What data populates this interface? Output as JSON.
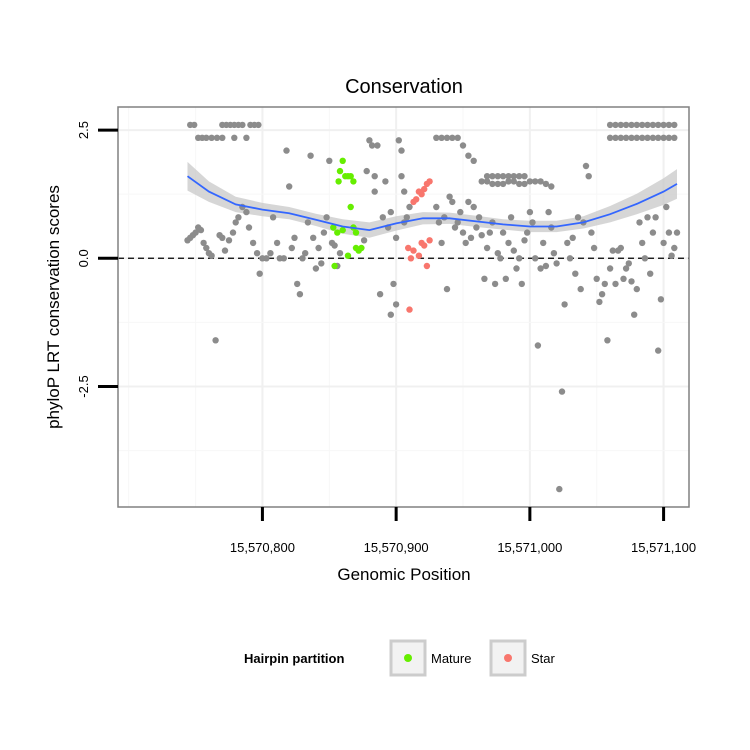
{
  "chart_data": {
    "type": "scatter",
    "title": "Conservation",
    "xlabel": "Genomic Position",
    "ylabel": "phyloP LRT conservation scores",
    "xlim": [
      15570692,
      15571119
    ],
    "ylim": [
      -4.85,
      2.95
    ],
    "x_ticks": [
      15570800,
      15570900,
      15571000,
      15571100
    ],
    "x_tick_labels": [
      "15,570,800",
      "15,570,900",
      "15,571,000",
      "15,571,100"
    ],
    "y_ticks": [
      -2.5,
      0.0,
      2.5
    ],
    "y_tick_labels": [
      "-2.5",
      "0.0",
      "2.5"
    ],
    "reference_line": {
      "y": 0,
      "style": "dashed"
    },
    "legend": {
      "title": "Hairpin partition",
      "position": "bottom",
      "entries": [
        {
          "label": "Mature",
          "color": "#66ee00"
        },
        {
          "label": "Star",
          "color": "#f8766d"
        }
      ]
    },
    "colors": {
      "other": "#8c8c8c",
      "smooth": "#3366ff",
      "ribbon": "#c8c8c8"
    },
    "series": [
      {
        "name": "Other",
        "points": [
          [
            15570746,
            2.6
          ],
          [
            15570749,
            2.6
          ],
          [
            15570752,
            2.35
          ],
          [
            15570755,
            2.35
          ],
          [
            15570758,
            2.35
          ],
          [
            15570762,
            2.35
          ],
          [
            15570766,
            2.35
          ],
          [
            15570770,
            2.6
          ],
          [
            15570773,
            2.6
          ],
          [
            15570776,
            2.6
          ],
          [
            15570779,
            2.35
          ],
          [
            15570782,
            2.6
          ],
          [
            15570785,
            2.6
          ],
          [
            15570788,
            2.35
          ],
          [
            15570791,
            2.6
          ],
          [
            15570794,
            2.6
          ],
          [
            15570797,
            2.6
          ],
          [
            15570779,
            2.6
          ],
          [
            15570770,
            2.35
          ],
          [
            15570744,
            0.35
          ],
          [
            15570746,
            0.4
          ],
          [
            15570748,
            0.45
          ],
          [
            15570750,
            0.5
          ],
          [
            15570752,
            0.6
          ],
          [
            15570754,
            0.55
          ],
          [
            15570756,
            0.3
          ],
          [
            15570758,
            0.2
          ],
          [
            15570760,
            0.1
          ],
          [
            15570762,
            0.05
          ],
          [
            15570765,
            -1.6
          ],
          [
            15570768,
            0.45
          ],
          [
            15570770,
            0.4
          ],
          [
            15570772,
            0.15
          ],
          [
            15570775,
            0.35
          ],
          [
            15570778,
            0.5
          ],
          [
            15570780,
            0.7
          ],
          [
            15570782,
            0.8
          ],
          [
            15570785,
            1.0
          ],
          [
            15570788,
            0.9
          ],
          [
            15570790,
            0.6
          ],
          [
            15570793,
            0.3
          ],
          [
            15570796,
            0.1
          ],
          [
            15570798,
            -0.3
          ],
          [
            15570800,
            0.0
          ],
          [
            15570803,
            0.0
          ],
          [
            15570806,
            0.1
          ],
          [
            15570808,
            0.8
          ],
          [
            15570811,
            0.3
          ],
          [
            15570813,
            0.0
          ],
          [
            15570816,
            0.0
          ],
          [
            15570818,
            2.1
          ],
          [
            15570820,
            1.4
          ],
          [
            15570822,
            0.2
          ],
          [
            15570824,
            0.4
          ],
          [
            15570826,
            -0.5
          ],
          [
            15570828,
            -0.7
          ],
          [
            15570830,
            0.0
          ],
          [
            15570832,
            0.1
          ],
          [
            15570834,
            0.7
          ],
          [
            15570836,
            2.0
          ],
          [
            15570838,
            0.4
          ],
          [
            15570840,
            -0.2
          ],
          [
            15570842,
            0.2
          ],
          [
            15570844,
            -0.1
          ],
          [
            15570846,
            0.5
          ],
          [
            15570848,
            0.8
          ],
          [
            15570850,
            1.9
          ],
          [
            15570852,
            0.3
          ],
          [
            15570854,
            0.25
          ],
          [
            15570856,
            -0.15
          ],
          [
            15570858,
            0.1
          ],
          [
            15570876,
            0.35
          ],
          [
            15570878,
            1.7
          ],
          [
            15570880,
            2.3
          ],
          [
            15570882,
            2.2
          ],
          [
            15570884,
            1.3
          ],
          [
            15570886,
            2.2
          ],
          [
            15570888,
            -0.7
          ],
          [
            15570890,
            0.8
          ],
          [
            15570892,
            1.5
          ],
          [
            15570894,
            0.6
          ],
          [
            15570896,
            -1.1
          ],
          [
            15570898,
            -0.5
          ],
          [
            15570900,
            -0.9
          ],
          [
            15570902,
            2.3
          ],
          [
            15570904,
            2.1
          ],
          [
            15570906,
            0.7
          ],
          [
            15570908,
            0.8
          ],
          [
            15570904,
            1.6
          ],
          [
            15570906,
            1.3
          ],
          [
            15570900,
            0.4
          ],
          [
            15570896,
            0.9
          ],
          [
            15570910,
            1.0
          ],
          [
            15570884,
            1.6
          ],
          [
            15570930,
            1.0
          ],
          [
            15570932,
            0.7
          ],
          [
            15570934,
            0.3
          ],
          [
            15570936,
            0.8
          ],
          [
            15570938,
            -0.6
          ],
          [
            15570940,
            1.2
          ],
          [
            15570942,
            1.1
          ],
          [
            15570944,
            0.6
          ],
          [
            15570946,
            0.7
          ],
          [
            15570948,
            0.9
          ],
          [
            15570950,
            0.5
          ],
          [
            15570952,
            0.3
          ],
          [
            15570954,
            1.1
          ],
          [
            15570956,
            0.4
          ],
          [
            15570958,
            1.0
          ],
          [
            15570960,
            0.6
          ],
          [
            15570962,
            0.8
          ],
          [
            15570964,
            0.45
          ],
          [
            15570966,
            -0.4
          ],
          [
            15570968,
            0.2
          ],
          [
            15570970,
            0.5
          ],
          [
            15570972,
            0.7
          ],
          [
            15570974,
            -0.5
          ],
          [
            15570976,
            0.1
          ],
          [
            15570978,
            0.0
          ],
          [
            15570980,
            0.5
          ],
          [
            15570982,
            -0.4
          ],
          [
            15570984,
            0.3
          ],
          [
            15570986,
            0.8
          ],
          [
            15570988,
            0.15
          ],
          [
            15570990,
            -0.2
          ],
          [
            15570992,
            0.0
          ],
          [
            15570994,
            -0.5
          ],
          [
            15570996,
            0.35
          ],
          [
            15570998,
            0.5
          ],
          [
            15571000,
            0.9
          ],
          [
            15571002,
            0.7
          ],
          [
            15571004,
            0.0
          ],
          [
            15571006,
            -1.7
          ],
          [
            15571008,
            -0.2
          ],
          [
            15571010,
            0.3
          ],
          [
            15571012,
            -0.15
          ],
          [
            15571014,
            0.9
          ],
          [
            15571016,
            0.6
          ],
          [
            15571018,
            0.1
          ],
          [
            15571020,
            -0.1
          ],
          [
            15571022,
            -4.5
          ],
          [
            15571024,
            -2.6
          ],
          [
            15571026,
            -0.9
          ],
          [
            15571028,
            0.3
          ],
          [
            15571030,
            0.0
          ],
          [
            15571032,
            0.4
          ],
          [
            15571034,
            -0.3
          ],
          [
            15571036,
            0.8
          ],
          [
            15571038,
            -0.6
          ],
          [
            15571040,
            0.7
          ],
          [
            15571042,
            1.8
          ],
          [
            15571044,
            1.6
          ],
          [
            15571046,
            0.5
          ],
          [
            15571048,
            0.2
          ],
          [
            15571050,
            -0.4
          ],
          [
            15571052,
            -0.85
          ],
          [
            15571054,
            -0.7
          ],
          [
            15571056,
            -0.5
          ],
          [
            15571058,
            -1.6
          ],
          [
            15571060,
            -0.2
          ],
          [
            15571062,
            0.15
          ],
          [
            15571064,
            -0.5
          ],
          [
            15571066,
            0.15
          ],
          [
            15571068,
            0.2
          ],
          [
            15571070,
            -0.4
          ],
          [
            15571072,
            -0.2
          ],
          [
            15571074,
            -0.1
          ],
          [
            15571076,
            -0.45
          ],
          [
            15571078,
            -1.1
          ],
          [
            15571080,
            -0.6
          ],
          [
            15571082,
            0.7
          ],
          [
            15571084,
            0.3
          ],
          [
            15571086,
            0.0
          ],
          [
            15571088,
            0.8
          ],
          [
            15571090,
            -0.3
          ],
          [
            15571092,
            0.5
          ],
          [
            15571094,
            0.8
          ],
          [
            15571096,
            -1.8
          ],
          [
            15571098,
            -0.8
          ],
          [
            15571100,
            0.3
          ],
          [
            15571102,
            1.0
          ],
          [
            15571104,
            0.5
          ],
          [
            15571106,
            0.05
          ],
          [
            15571108,
            0.2
          ],
          [
            15571110,
            0.5
          ],
          [
            15570968,
            1.6
          ],
          [
            15570972,
            1.6
          ],
          [
            15570976,
            1.6
          ],
          [
            15570980,
            1.6
          ],
          [
            15570984,
            1.6
          ],
          [
            15570988,
            1.6
          ],
          [
            15570992,
            1.6
          ],
          [
            15570996,
            1.6
          ],
          [
            15570964,
            1.5
          ],
          [
            15570968,
            1.5
          ],
          [
            15570972,
            1.45
          ],
          [
            15570976,
            1.45
          ],
          [
            15570980,
            1.45
          ],
          [
            15570984,
            1.5
          ],
          [
            15570988,
            1.5
          ],
          [
            15570992,
            1.45
          ],
          [
            15570996,
            1.45
          ],
          [
            15571000,
            1.5
          ],
          [
            15571004,
            1.5
          ],
          [
            15571008,
            1.5
          ],
          [
            15571012,
            1.45
          ],
          [
            15571016,
            1.4
          ],
          [
            15570930,
            2.35
          ],
          [
            15570934,
            2.35
          ],
          [
            15570938,
            2.35
          ],
          [
            15570942,
            2.35
          ],
          [
            15570946,
            2.35
          ],
          [
            15570950,
            2.2
          ],
          [
            15570954,
            2.0
          ],
          [
            15570958,
            1.9
          ],
          [
            15571060,
            2.6
          ],
          [
            15571064,
            2.6
          ],
          [
            15571068,
            2.6
          ],
          [
            15571072,
            2.6
          ],
          [
            15571076,
            2.6
          ],
          [
            15571080,
            2.6
          ],
          [
            15571084,
            2.6
          ],
          [
            15571088,
            2.6
          ],
          [
            15571092,
            2.6
          ],
          [
            15571096,
            2.6
          ],
          [
            15571100,
            2.6
          ],
          [
            15571104,
            2.6
          ],
          [
            15571108,
            2.6
          ],
          [
            15571060,
            2.35
          ],
          [
            15571064,
            2.35
          ],
          [
            15571068,
            2.35
          ],
          [
            15571072,
            2.35
          ],
          [
            15571076,
            2.35
          ],
          [
            15571080,
            2.35
          ],
          [
            15571084,
            2.35
          ],
          [
            15571088,
            2.35
          ],
          [
            15571092,
            2.35
          ],
          [
            15571096,
            2.35
          ],
          [
            15571100,
            2.35
          ],
          [
            15571104,
            2.35
          ],
          [
            15571108,
            2.35
          ]
        ]
      },
      {
        "name": "Mature",
        "points": [
          [
            15570853,
            0.6
          ],
          [
            15570856,
            0.5
          ],
          [
            15570858,
            1.7
          ],
          [
            15570860,
            1.9
          ],
          [
            15570862,
            1.6
          ],
          [
            15570864,
            1.6
          ],
          [
            15570866,
            1.6
          ],
          [
            15570868,
            1.5
          ],
          [
            15570866,
            1.0
          ],
          [
            15570868,
            0.6
          ],
          [
            15570870,
            0.5
          ],
          [
            15570870,
            0.2
          ],
          [
            15570872,
            0.15
          ],
          [
            15570874,
            0.2
          ],
          [
            15570857,
            1.5
          ],
          [
            15570860,
            0.55
          ],
          [
            15570864,
            0.05
          ],
          [
            15570854,
            -0.15
          ]
        ]
      },
      {
        "name": "Star",
        "points": [
          [
            15570909,
            0.2
          ],
          [
            15570911,
            0.0
          ],
          [
            15570913,
            1.1
          ],
          [
            15570915,
            1.15
          ],
          [
            15570917,
            1.3
          ],
          [
            15570919,
            1.25
          ],
          [
            15570921,
            1.35
          ],
          [
            15570923,
            1.45
          ],
          [
            15570925,
            1.5
          ],
          [
            15570917,
            0.05
          ],
          [
            15570919,
            0.3
          ],
          [
            15570921,
            0.25
          ],
          [
            15570923,
            -0.15
          ],
          [
            15570925,
            0.35
          ],
          [
            15570910,
            -1.0
          ],
          [
            15570913,
            0.15
          ]
        ]
      }
    ],
    "smooth": {
      "x": [
        15570744,
        15570760,
        15570780,
        15570800,
        15570820,
        15570840,
        15570860,
        15570880,
        15570900,
        15570920,
        15570940,
        15570960,
        15570980,
        15571000,
        15571020,
        15571040,
        15571060,
        15571080,
        15571100,
        15571110
      ],
      "y": [
        1.6,
        1.3,
        1.05,
        0.95,
        0.88,
        0.75,
        0.62,
        0.55,
        0.68,
        0.78,
        0.78,
        0.72,
        0.66,
        0.62,
        0.62,
        0.7,
        0.86,
        1.06,
        1.3,
        1.45
      ],
      "lower": [
        1.32,
        1.1,
        0.9,
        0.82,
        0.76,
        0.63,
        0.48,
        0.4,
        0.54,
        0.66,
        0.67,
        0.61,
        0.56,
        0.51,
        0.51,
        0.58,
        0.7,
        0.86,
        1.04,
        1.16
      ],
      "upper": [
        1.88,
        1.5,
        1.2,
        1.08,
        1.0,
        0.87,
        0.76,
        0.7,
        0.82,
        0.9,
        0.89,
        0.83,
        0.76,
        0.73,
        0.73,
        0.82,
        1.02,
        1.26,
        1.56,
        1.74
      ]
    }
  }
}
